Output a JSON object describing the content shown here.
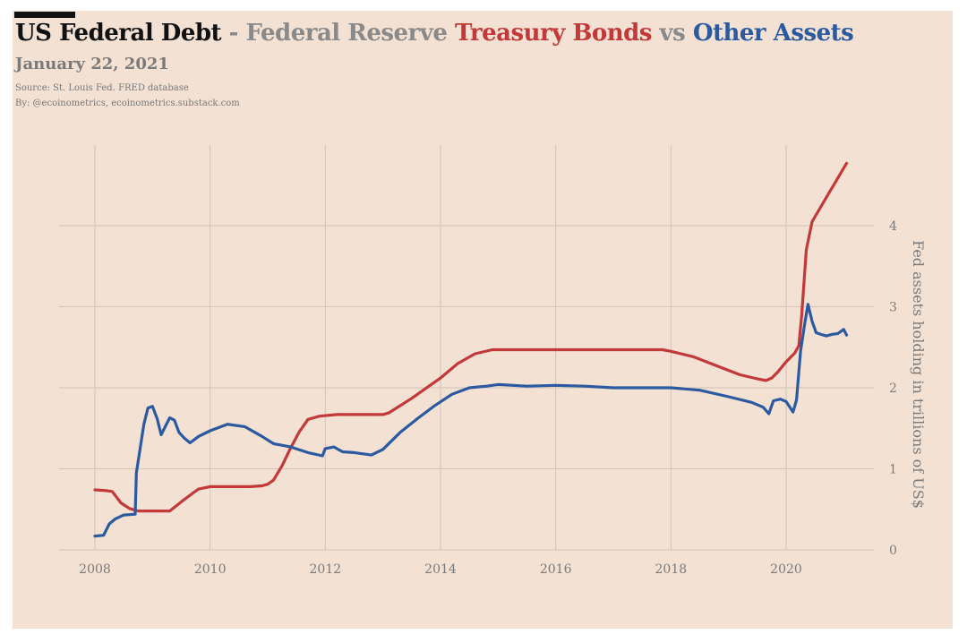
{
  "header": {
    "title_parts": [
      {
        "text": "US Federal Debt",
        "color": "#111111"
      },
      {
        "text": " - Federal Reserve ",
        "color": "#8a8a8a"
      },
      {
        "text": "Treasury Bonds",
        "color": "#c3393a"
      },
      {
        "text": " vs ",
        "color": "#8a8a8a"
      },
      {
        "text": "Other Assets",
        "color": "#2c5aa0"
      }
    ],
    "subtitle": "January 22, 2021",
    "source": "Source: St. Louis Fed. FRED database",
    "byline": "By: @ecoinometrics, ecoinometrics.substack.com"
  },
  "chart_data": {
    "type": "line",
    "title": "US Federal Debt - Federal Reserve Treasury Bonds vs Other Assets",
    "xlabel": "",
    "ylabel": "Fed assets holding in trillions of US$",
    "xlim": [
      2007.0,
      2021.5
    ],
    "ylim": [
      -0.05,
      5.0
    ],
    "xticks": [
      2008,
      2010,
      2012,
      2014,
      2016,
      2018,
      2020
    ],
    "yticks": [
      0,
      1,
      2,
      3,
      4
    ],
    "grid": true,
    "series": [
      {
        "name": "Treasury Bonds",
        "color": "#c3393a",
        "x": [
          2008.0,
          2008.2,
          2008.3,
          2008.45,
          2008.6,
          2008.75,
          2009.0,
          2009.2,
          2009.3,
          2009.55,
          2009.7,
          2009.8,
          2010.0,
          2010.5,
          2010.7,
          2010.9,
          2011.0,
          2011.1,
          2011.25,
          2011.4,
          2011.55,
          2011.7,
          2011.9,
          2012.2,
          2012.6,
          2012.9,
          2013.0,
          2013.1,
          2013.5,
          2014.0,
          2014.3,
          2014.6,
          2014.9,
          2015.5,
          2016.5,
          2017.5,
          2017.85,
          2018.0,
          2018.4,
          2018.8,
          2019.2,
          2019.5,
          2019.65,
          2019.75,
          2019.85,
          2020.0,
          2020.15,
          2020.22,
          2020.27,
          2020.35,
          2020.45,
          2020.7,
          2021.05
        ],
        "values": [
          0.74,
          0.73,
          0.72,
          0.58,
          0.51,
          0.48,
          0.48,
          0.48,
          0.48,
          0.62,
          0.7,
          0.75,
          0.78,
          0.78,
          0.78,
          0.79,
          0.81,
          0.86,
          1.04,
          1.26,
          1.46,
          1.61,
          1.65,
          1.67,
          1.67,
          1.67,
          1.67,
          1.69,
          1.87,
          2.12,
          2.3,
          2.42,
          2.47,
          2.47,
          2.47,
          2.47,
          2.47,
          2.45,
          2.38,
          2.27,
          2.16,
          2.11,
          2.09,
          2.12,
          2.19,
          2.32,
          2.43,
          2.52,
          2.9,
          3.7,
          4.05,
          4.35,
          4.77
        ]
      },
      {
        "name": "Other Assets",
        "color": "#2c5aa0",
        "x": [
          2008.0,
          2008.15,
          2008.25,
          2008.35,
          2008.5,
          2008.7,
          2008.72,
          2008.85,
          2008.92,
          2009.0,
          2009.08,
          2009.15,
          2009.22,
          2009.3,
          2009.38,
          2009.46,
          2009.55,
          2009.65,
          2009.8,
          2010.0,
          2010.3,
          2010.6,
          2010.9,
          2011.1,
          2011.4,
          2011.7,
          2011.95,
          2012.0,
          2012.15,
          2012.3,
          2012.5,
          2012.7,
          2012.8,
          2013.0,
          2013.3,
          2013.6,
          2013.9,
          2014.2,
          2014.5,
          2014.8,
          2015.0,
          2015.5,
          2016.0,
          2016.5,
          2017.0,
          2017.5,
          2018.0,
          2018.5,
          2019.0,
          2019.4,
          2019.6,
          2019.7,
          2019.78,
          2019.9,
          2020.0,
          2020.12,
          2020.18,
          2020.25,
          2020.32,
          2020.38,
          2020.45,
          2020.52,
          2020.6,
          2020.7,
          2020.8,
          2020.9,
          2021.0,
          2021.05
        ],
        "values": [
          0.17,
          0.18,
          0.32,
          0.38,
          0.43,
          0.44,
          0.95,
          1.55,
          1.75,
          1.77,
          1.62,
          1.42,
          1.52,
          1.63,
          1.6,
          1.45,
          1.38,
          1.32,
          1.4,
          1.47,
          1.55,
          1.52,
          1.4,
          1.31,
          1.27,
          1.2,
          1.16,
          1.25,
          1.27,
          1.21,
          1.2,
          1.18,
          1.17,
          1.24,
          1.45,
          1.62,
          1.78,
          1.92,
          2.0,
          2.02,
          2.04,
          2.02,
          2.03,
          2.02,
          2.0,
          2.0,
          2.0,
          1.97,
          1.89,
          1.82,
          1.76,
          1.68,
          1.84,
          1.86,
          1.83,
          1.7,
          1.85,
          2.45,
          2.78,
          3.03,
          2.82,
          2.68,
          2.66,
          2.64,
          2.66,
          2.67,
          2.72,
          2.65
        ]
      }
    ]
  }
}
